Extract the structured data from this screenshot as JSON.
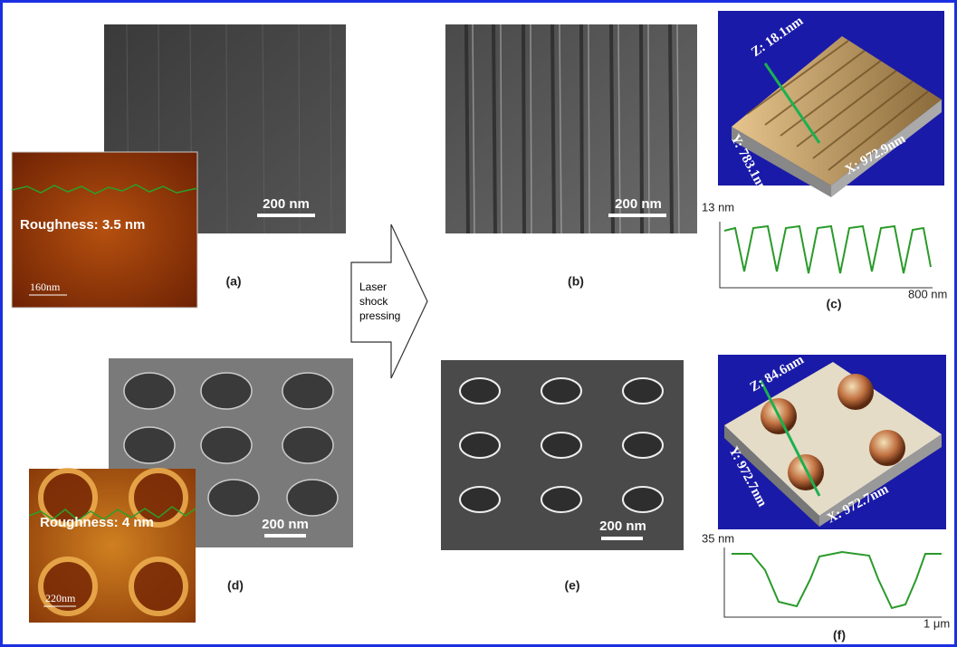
{
  "panels": {
    "a": {
      "scale_bar": "200 nm",
      "roughness": "Roughness: 3.5 nm",
      "afm_scale": "160nm",
      "label": "(a)"
    },
    "arrow": {
      "lines": [
        "Laser",
        "shock",
        "pressing"
      ]
    },
    "b": {
      "scale_bar": "200 nm",
      "label": "(b)"
    },
    "c": {
      "z": "Z: 18.1nm",
      "y": "Y: 783.1nm",
      "x": "X: 972.9nm",
      "profile_y": "13 nm",
      "profile_x": "800 nm",
      "label": "(c)"
    },
    "d": {
      "scale_bar": "200 nm",
      "roughness": "Roughness: 4 nm",
      "afm_scale": "220nm",
      "label": "(d)"
    },
    "e": {
      "scale_bar": "200 nm",
      "label": "(e)"
    },
    "f": {
      "z": "Z: 84.6nm",
      "y": "Y: 972.7nm",
      "x": "X: 972.7nm",
      "profile_y": "35 nm",
      "profile_x": "1 μm",
      "label": "(f)"
    }
  }
}
